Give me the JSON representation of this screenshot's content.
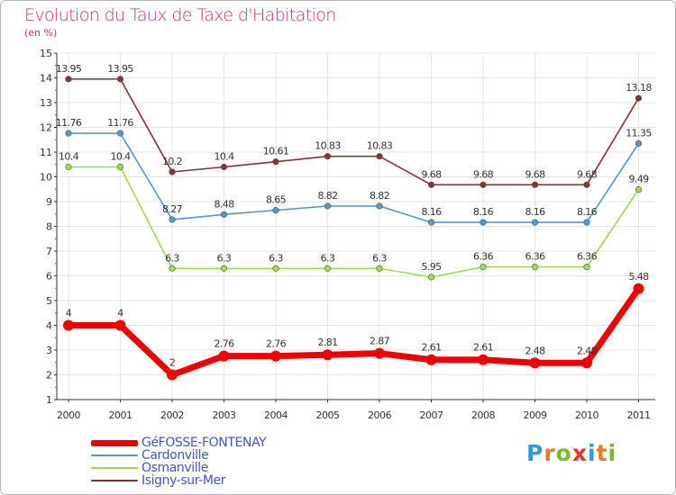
{
  "header": {
    "title": "Evolution du Taux de Taxe d'Habitation",
    "subtitle": "(en %)"
  },
  "logo": {
    "letters": [
      "P",
      "r",
      "o",
      "x",
      "i",
      "t",
      "i"
    ],
    "colors": [
      "#3399dd",
      "#ee7722",
      "#77bb33",
      "#ee3322",
      "#3399dd",
      "#ee7722",
      "#77bb33"
    ]
  },
  "chart_data": {
    "type": "line",
    "title": "Evolution du Taux de Taxe d'Habitation",
    "ylabel": "(en %)",
    "x": [
      "2000",
      "2001",
      "2002",
      "2003",
      "2004",
      "2005",
      "2006",
      "2007",
      "2008",
      "2009",
      "2010",
      "2011"
    ],
    "ylim": [
      1,
      15
    ],
    "yticks": [
      "1",
      "2",
      "3",
      "4",
      "5",
      "6",
      "7",
      "8",
      "9",
      "10",
      "11",
      "12",
      "13",
      "14",
      "15"
    ],
    "grid": true,
    "legend_position": "bottom-left",
    "series": [
      {
        "name": "GéFOSSE-FONTENAY",
        "color": "#ee0000",
        "values": [
          4,
          4,
          2,
          2.76,
          2.76,
          2.81,
          2.87,
          2.61,
          2.61,
          2.48,
          2.48,
          5.48
        ],
        "labels": [
          "4",
          "4",
          "2",
          "2.76",
          "2.76",
          "2.81",
          "2.87",
          "2.61",
          "2.61",
          "2.48",
          "2.48",
          "5.48"
        ]
      },
      {
        "name": "Cardonville",
        "color": "#5599cc",
        "values": [
          11.76,
          11.76,
          8.27,
          8.48,
          8.65,
          8.82,
          8.82,
          8.16,
          8.16,
          8.16,
          8.16,
          11.35
        ],
        "labels": [
          "11.76",
          "11.76",
          "8.27",
          "8.48",
          "8.65",
          "8.82",
          "8.82",
          "8.16",
          "8.16",
          "8.16",
          "8.16",
          "11.35"
        ]
      },
      {
        "name": "Osmanville",
        "color": "#99dd55",
        "values": [
          10.4,
          10.4,
          6.3,
          6.3,
          6.3,
          6.3,
          6.3,
          5.95,
          6.36,
          6.36,
          6.36,
          9.49
        ],
        "labels": [
          "10.4",
          "10.4",
          "6.3",
          "6.3",
          "6.3",
          "6.3",
          "6.3",
          "5.95",
          "6.36",
          "6.36",
          "6.36",
          "9.49"
        ]
      },
      {
        "name": "Isigny-sur-Mer",
        "color": "#883333",
        "values": [
          13.95,
          13.95,
          10.2,
          10.4,
          10.61,
          10.83,
          10.83,
          9.68,
          9.68,
          9.68,
          9.68,
          13.18
        ],
        "labels": [
          "13.95",
          "13.95",
          "10.2",
          "10.4",
          "10.61",
          "10.83",
          "10.83",
          "9.68",
          "9.68",
          "9.68",
          "9.68",
          "13.18"
        ]
      }
    ]
  }
}
